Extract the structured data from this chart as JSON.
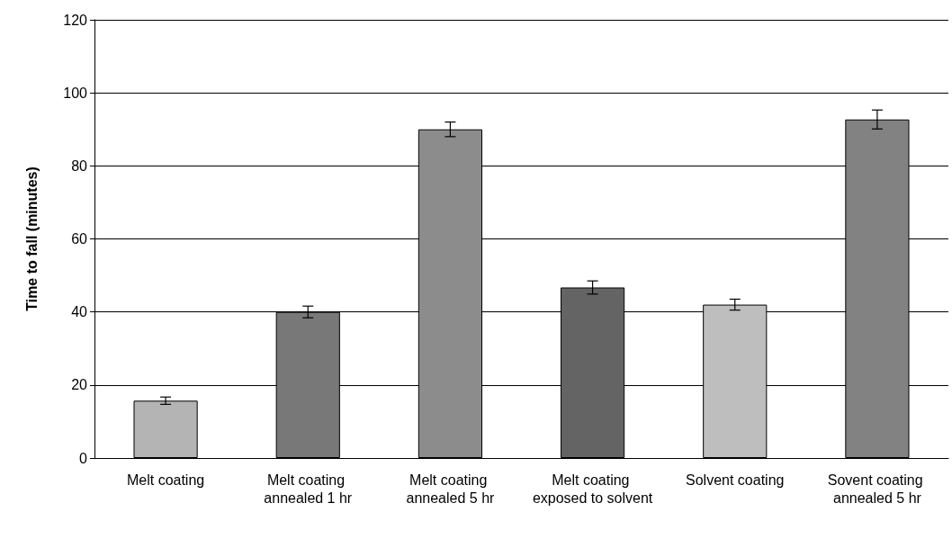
{
  "chart_data": {
    "type": "bar",
    "ylabel": "Time to fall (minutes)",
    "categories": [
      "Melt coating",
      "Melt coating annealed 1 hr",
      "Melt coating annealed 5 hr",
      "Melt coating exposed to solvent",
      "Solvent coating",
      "Sovent coating annealed 5 hr"
    ],
    "values": [
      15.7,
      40,
      90,
      46.7,
      42,
      92.7
    ],
    "errors": [
      1,
      1.6,
      2,
      1.8,
      1.5,
      2.6
    ],
    "colors": [
      "#b4b4b4",
      "#787878",
      "#8c8c8c",
      "#646464",
      "#bebebe",
      "#828282"
    ],
    "ylim": [
      0,
      120
    ],
    "yticks": [
      0,
      20,
      40,
      60,
      80,
      100,
      120
    ],
    "grid": "y"
  }
}
